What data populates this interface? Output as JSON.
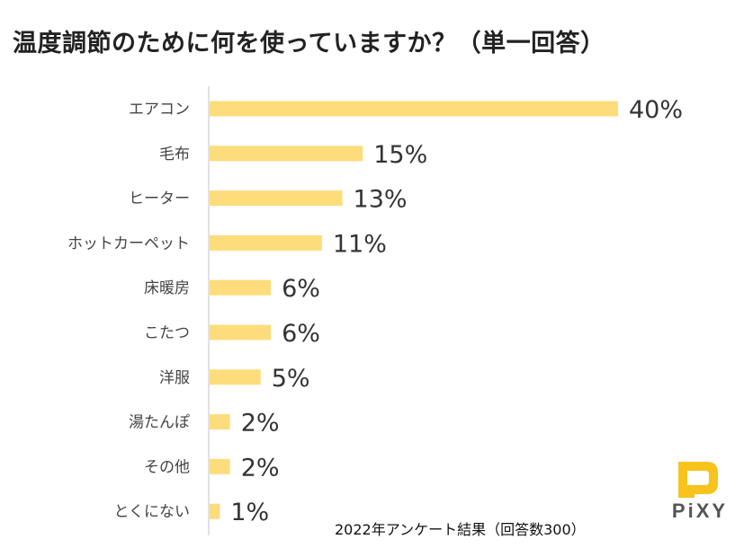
{
  "title": "温度調節のために何を使っていますか？（単一回答）",
  "footnote": "2022年アンケート結果（回答数300）",
  "logo": {
    "text": "PiXY",
    "color": "#F7C31C"
  },
  "chart_data": {
    "type": "bar",
    "orientation": "horizontal",
    "title": "温度調節のために何を使っていますか？（単一回答）",
    "categories": [
      "エアコン",
      "毛布",
      "ヒーター",
      "ホットカーペット",
      "床暖房",
      "こたつ",
      "洋服",
      "湯たんぽ",
      "その他",
      "とくにない"
    ],
    "values": [
      40,
      15,
      13,
      11,
      6,
      6,
      5,
      2,
      2,
      1
    ],
    "labels": [
      "40%",
      "15%",
      "13%",
      "11%",
      "6%",
      "6%",
      "5%",
      "2%",
      "2%",
      "1%"
    ],
    "unit": "%",
    "xlim": [
      0,
      40
    ],
    "bar_color": "#FDDC7B",
    "grid": false,
    "legend": "none"
  }
}
